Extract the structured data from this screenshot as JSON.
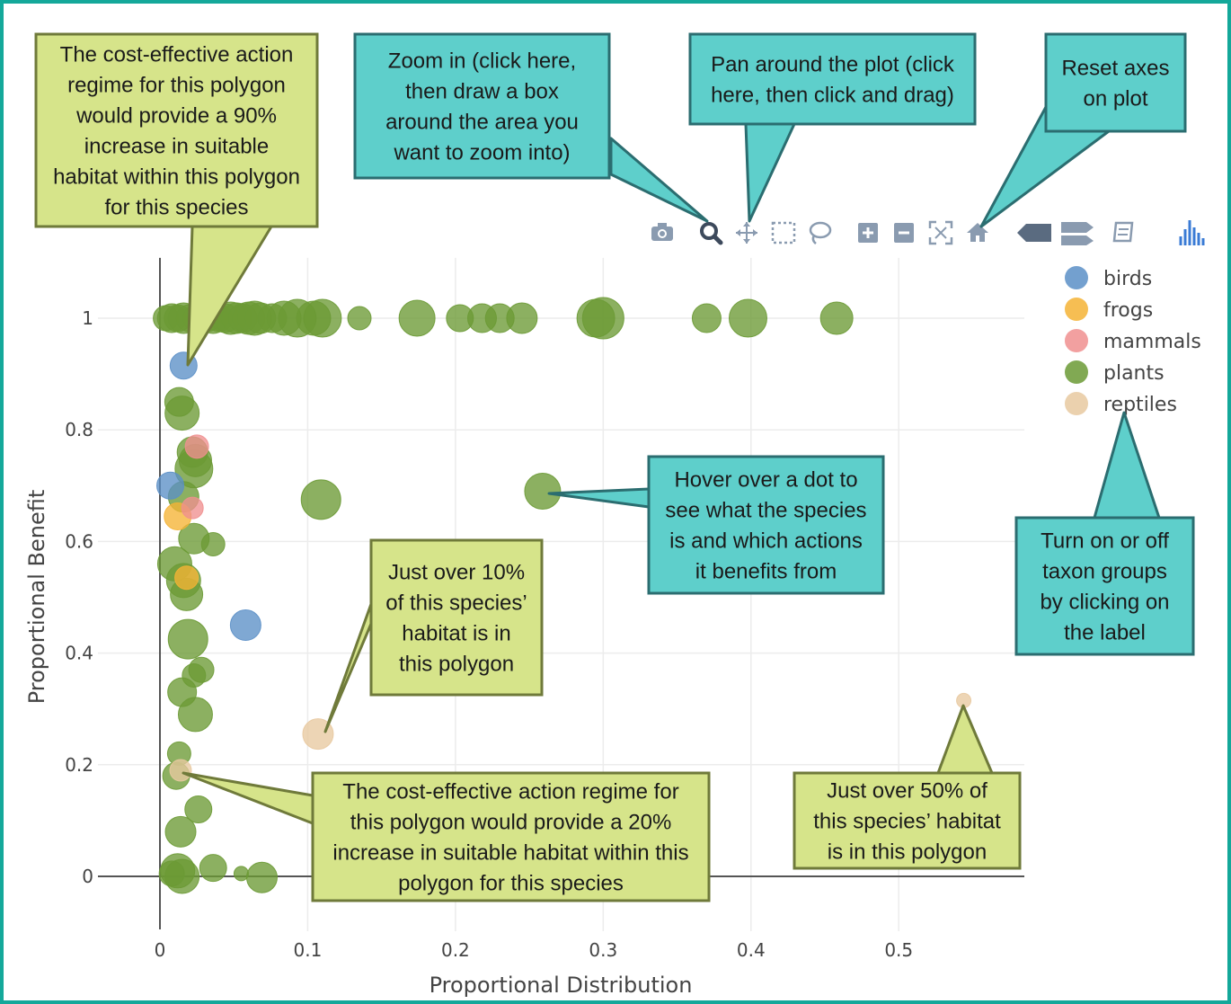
{
  "chart_data": {
    "type": "scatter",
    "title": "",
    "xlabel": "Proportional Distribution",
    "ylabel": "Proportional Benefit",
    "xlim": [
      0,
      0.585
    ],
    "ylim": [
      -0.05,
      1.1
    ],
    "xticks": [
      0,
      0.1,
      0.2,
      0.3,
      0.4,
      0.5
    ],
    "xtick_labels": [
      "0",
      "0.1",
      "0.2",
      "0.3",
      "0.4",
      "0.5"
    ],
    "yticks": [
      0,
      0.2,
      0.4,
      0.6,
      0.8,
      1
    ],
    "ytick_labels": [
      "0",
      "0.2",
      "0.4",
      "0.6",
      "0.8",
      "1"
    ],
    "grid": true,
    "legend_position": "top-right",
    "series": [
      {
        "name": "birds",
        "color": "#5b8fc7",
        "points": [
          {
            "x": 0.016,
            "y": 0.915,
            "s": 15
          },
          {
            "x": 0.007,
            "y": 0.7,
            "s": 15
          },
          {
            "x": 0.058,
            "y": 0.45,
            "s": 17
          }
        ]
      },
      {
        "name": "frogs",
        "color": "#f5b335",
        "points": [
          {
            "x": 0.012,
            "y": 0.645,
            "s": 15
          },
          {
            "x": 0.018,
            "y": 0.535,
            "s": 13
          }
        ]
      },
      {
        "name": "mammals",
        "color": "#f08f8f",
        "points": [
          {
            "x": 0.025,
            "y": 0.77,
            "s": 13
          },
          {
            "x": 0.022,
            "y": 0.66,
            "s": 12
          }
        ]
      },
      {
        "name": "plants",
        "color": "#6b9a35",
        "points": [
          {
            "x": 0.004,
            "y": 1,
            "s": 14
          },
          {
            "x": 0.008,
            "y": 1,
            "s": 16
          },
          {
            "x": 0.012,
            "y": 1,
            "s": 15
          },
          {
            "x": 0.016,
            "y": 1,
            "s": 17
          },
          {
            "x": 0.02,
            "y": 1,
            "s": 15
          },
          {
            "x": 0.024,
            "y": 1,
            "s": 14
          },
          {
            "x": 0.028,
            "y": 1,
            "s": 16
          },
          {
            "x": 0.032,
            "y": 1,
            "s": 15
          },
          {
            "x": 0.036,
            "y": 1,
            "s": 17
          },
          {
            "x": 0.04,
            "y": 1,
            "s": 15
          },
          {
            "x": 0.044,
            "y": 1,
            "s": 16
          },
          {
            "x": 0.048,
            "y": 1,
            "s": 18
          },
          {
            "x": 0.052,
            "y": 1,
            "s": 17
          },
          {
            "x": 0.056,
            "y": 1,
            "s": 16
          },
          {
            "x": 0.06,
            "y": 1,
            "s": 18
          },
          {
            "x": 0.064,
            "y": 1,
            "s": 19
          },
          {
            "x": 0.068,
            "y": 1,
            "s": 17
          },
          {
            "x": 0.076,
            "y": 1,
            "s": 16
          },
          {
            "x": 0.084,
            "y": 1,
            "s": 19
          },
          {
            "x": 0.093,
            "y": 1,
            "s": 21
          },
          {
            "x": 0.104,
            "y": 1,
            "s": 19
          },
          {
            "x": 0.11,
            "y": 1,
            "s": 21
          },
          {
            "x": 0.135,
            "y": 1,
            "s": 13
          },
          {
            "x": 0.174,
            "y": 1,
            "s": 20
          },
          {
            "x": 0.203,
            "y": 1,
            "s": 15
          },
          {
            "x": 0.218,
            "y": 1,
            "s": 16
          },
          {
            "x": 0.23,
            "y": 1,
            "s": 16
          },
          {
            "x": 0.245,
            "y": 1,
            "s": 17
          },
          {
            "x": 0.295,
            "y": 1,
            "s": 21
          },
          {
            "x": 0.3,
            "y": 1,
            "s": 23
          },
          {
            "x": 0.37,
            "y": 1,
            "s": 16
          },
          {
            "x": 0.398,
            "y": 1,
            "s": 21
          },
          {
            "x": 0.458,
            "y": 1,
            "s": 18
          },
          {
            "x": 0.013,
            "y": 0.85,
            "s": 16
          },
          {
            "x": 0.015,
            "y": 0.83,
            "s": 19
          },
          {
            "x": 0.022,
            "y": 0.76,
            "s": 17
          },
          {
            "x": 0.024,
            "y": 0.745,
            "s": 18
          },
          {
            "x": 0.023,
            "y": 0.73,
            "s": 21
          },
          {
            "x": 0.016,
            "y": 0.68,
            "s": 17
          },
          {
            "x": 0.259,
            "y": 0.69,
            "s": 20
          },
          {
            "x": 0.109,
            "y": 0.675,
            "s": 22
          },
          {
            "x": 0.023,
            "y": 0.605,
            "s": 17
          },
          {
            "x": 0.036,
            "y": 0.595,
            "s": 13
          },
          {
            "x": 0.01,
            "y": 0.56,
            "s": 19
          },
          {
            "x": 0.016,
            "y": 0.53,
            "s": 19
          },
          {
            "x": 0.018,
            "y": 0.505,
            "s": 18
          },
          {
            "x": 0.019,
            "y": 0.425,
            "s": 22
          },
          {
            "x": 0.028,
            "y": 0.37,
            "s": 14
          },
          {
            "x": 0.023,
            "y": 0.36,
            "s": 13
          },
          {
            "x": 0.015,
            "y": 0.33,
            "s": 16
          },
          {
            "x": 0.024,
            "y": 0.29,
            "s": 19
          },
          {
            "x": 0.013,
            "y": 0.22,
            "s": 13
          },
          {
            "x": 0.011,
            "y": 0.18,
            "s": 15
          },
          {
            "x": 0.026,
            "y": 0.12,
            "s": 15
          },
          {
            "x": 0.014,
            "y": 0.08,
            "s": 17
          },
          {
            "x": 0.012,
            "y": 0.01,
            "s": 19
          },
          {
            "x": 0.015,
            "y": 0.0,
            "s": 19
          },
          {
            "x": 0.036,
            "y": 0.015,
            "s": 15
          },
          {
            "x": 0.055,
            "y": 0.005,
            "s": 8
          },
          {
            "x": 0.069,
            "y": -0.002,
            "s": 17
          },
          {
            "x": 0.008,
            "y": 0.005,
            "s": 14
          }
        ]
      },
      {
        "name": "reptiles",
        "color": "#e8c9a0",
        "points": [
          {
            "x": 0.107,
            "y": 0.255,
            "s": 17
          },
          {
            "x": 0.544,
            "y": 0.315,
            "s": 8
          },
          {
            "x": 0.014,
            "y": 0.19,
            "s": 12
          }
        ]
      }
    ]
  },
  "modebar": [
    {
      "icon": "camera-icon",
      "color": "#8a9bb0"
    },
    {
      "icon": "zoom-icon",
      "color": "#3d4a5c"
    },
    {
      "icon": "pan-icon",
      "color": "#8a9bb0"
    },
    {
      "icon": "box-select-icon",
      "color": "#8a9bb0"
    },
    {
      "icon": "lasso-select-icon",
      "color": "#8a9bb0"
    },
    {
      "icon": "zoom-in-icon",
      "color": "#8a9bb0"
    },
    {
      "icon": "zoom-out-icon",
      "color": "#8a9bb0"
    },
    {
      "icon": "autoscale-icon",
      "color": "#8a9bb0"
    },
    {
      "icon": "reset-axes-icon",
      "color": "#8a9bb0"
    },
    {
      "icon": "hover-closest-icon",
      "color": "#5a6b80"
    },
    {
      "icon": "hover-compare-icon",
      "color": "#8a9bb0"
    },
    {
      "icon": "edit-chart-icon",
      "color": "#8a9bb0"
    },
    {
      "icon": "plotly-logo-icon",
      "color": "#3a7bd5"
    }
  ],
  "callouts": [
    {
      "id": "callout-90pct",
      "style": "yellow",
      "lines": [
        "The cost-effective action",
        "regime for this polygon",
        "would provide a 90%",
        "increase in suitable",
        "habitat within this polygon",
        "for this species"
      ]
    },
    {
      "id": "callout-zoom",
      "style": "teal",
      "lines": [
        "Zoom in (click here,",
        "then draw a box",
        "around the area you",
        "want to zoom into)"
      ]
    },
    {
      "id": "callout-pan",
      "style": "teal",
      "lines": [
        "Pan around the plot (click",
        "here, then click and drag)"
      ]
    },
    {
      "id": "callout-reset",
      "style": "teal",
      "lines": [
        "Reset axes",
        "on plot"
      ]
    },
    {
      "id": "callout-hover",
      "style": "teal",
      "lines": [
        "Hover over a dot to",
        "see what the species",
        "is and which actions",
        "it benefits from"
      ]
    },
    {
      "id": "callout-taxon",
      "style": "teal",
      "lines": [
        "Turn on or off",
        "taxon groups",
        "by clicking on",
        "the label"
      ]
    },
    {
      "id": "callout-10pct",
      "style": "yellow",
      "lines": [
        "Just over 10%",
        "of this species’",
        "habitat is in",
        "this polygon"
      ]
    },
    {
      "id": "callout-20pct",
      "style": "yellow",
      "lines": [
        "The cost-effective action regime for",
        "this polygon would provide a 20%",
        "increase in suitable habitat within this",
        "polygon for this species"
      ]
    },
    {
      "id": "callout-50pct",
      "style": "yellow",
      "lines": [
        "Just over 50% of",
        "this species’ habitat",
        "is in this polygon"
      ]
    }
  ],
  "colors": {
    "frame_border": "#14a89a",
    "callout_yellow_fill": "#d6e48a",
    "callout_yellow_stroke": "#6f7a3a",
    "callout_teal_fill": "#5ecfcb",
    "callout_teal_stroke": "#2b6d70",
    "grid": "#ececec",
    "axis_line": "#555555"
  }
}
